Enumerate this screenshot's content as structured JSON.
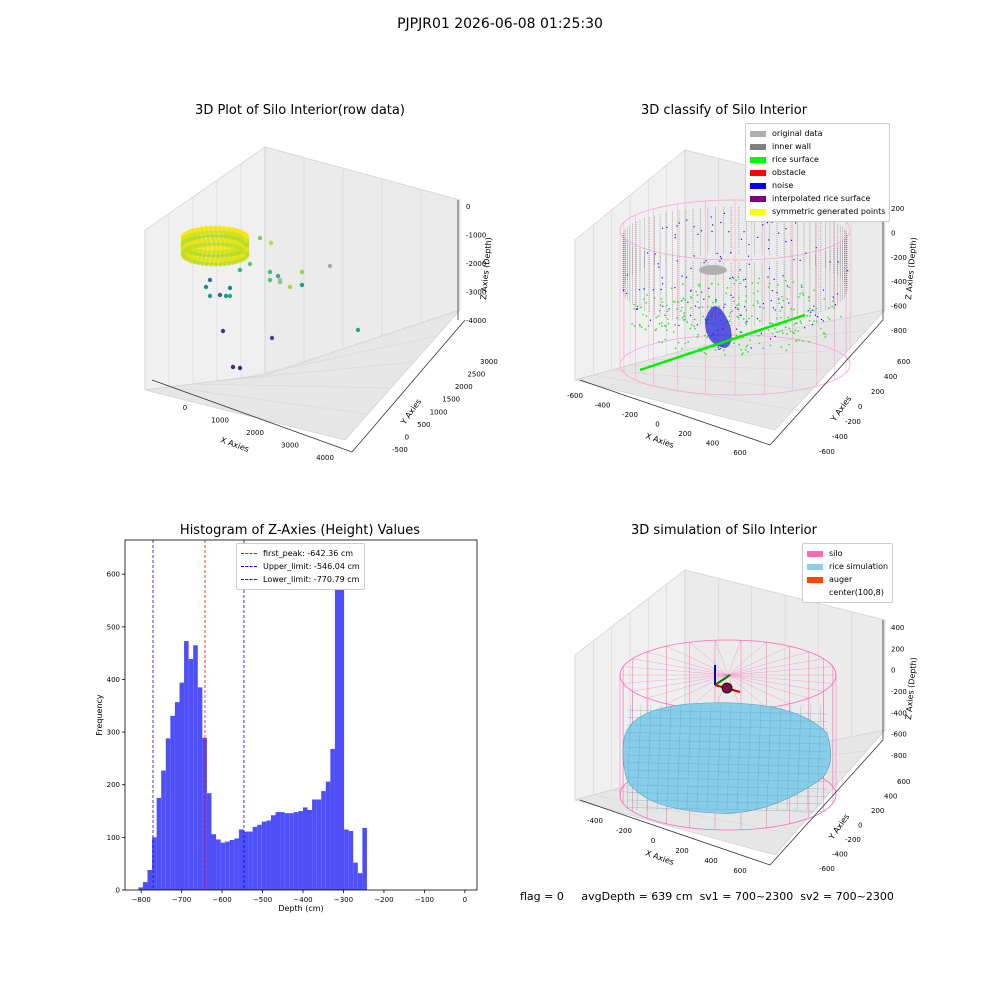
{
  "suptitle": "PJPJR01 2026-06-08 01:25:30",
  "footer": {
    "flag": "flag = 0",
    "avg": "avgDepth = 639 cm",
    "sv1": "sv1 = 700~2300",
    "sv2": "sv2 = 700~2300"
  },
  "chart_data": [
    {
      "type": "scatter",
      "title": "3D Plot of Silo Interior(row data)",
      "xlabel": "X Axies",
      "ylabel": "Y Axies",
      "zlabel": "Z Axies (Depth)",
      "x_ticks": [
        "0",
        "1000",
        "2000",
        "3000",
        "4000"
      ],
      "y_ticks": [
        "-500",
        "0",
        "500",
        "1000",
        "1500",
        "2000",
        "2500",
        "3000"
      ],
      "z_ticks": [
        "0",
        "-1000",
        "-2000",
        "-3000",
        "-4000"
      ]
    },
    {
      "type": "scatter",
      "title": "3D classify of Silo Interior",
      "xlabel": "X Axies",
      "ylabel": "Y Axies",
      "zlabel": "Z Axies (Depth)",
      "x_ticks": [
        "-600",
        "-400",
        "-200",
        "0",
        "200",
        "400",
        "600"
      ],
      "y_ticks": [
        "-600",
        "-400",
        "-200",
        "0",
        "200",
        "400",
        "600"
      ],
      "z_ticks": [
        "200",
        "0",
        "-200",
        "-400",
        "-600",
        "-800"
      ],
      "legend": [
        {
          "label": "original data",
          "color": "#b0b0b0"
        },
        {
          "label": "inner wall",
          "color": "#808080"
        },
        {
          "label": "rice surface",
          "color": "#00ff00"
        },
        {
          "label": "obstacle",
          "color": "#ff0000"
        },
        {
          "label": "noise",
          "color": "#0000ff"
        },
        {
          "label": "interpolated rice surface",
          "color": "#800080"
        },
        {
          "label": "symmetric generated points",
          "color": "#ffff00"
        }
      ]
    },
    {
      "type": "bar",
      "title": "Histogram of Z-Axies (Height) Values",
      "xlabel": "Depth (cm)",
      "ylabel": "Frequency",
      "xlim": [
        -840,
        30
      ],
      "ylim": [
        0,
        665
      ],
      "x_ticks": [
        -800,
        -700,
        -600,
        -500,
        -400,
        -300,
        -200,
        -100,
        0
      ],
      "y_ticks": [
        0,
        100,
        200,
        300,
        400,
        500,
        600
      ],
      "bin_start": -807,
      "bin_width": 11.3,
      "values": [
        5,
        15,
        38,
        100,
        175,
        227,
        288,
        331,
        357,
        394,
        473,
        439,
        465,
        385,
        289,
        184,
        106,
        96,
        90,
        92,
        95,
        98,
        115,
        111,
        111,
        120,
        124,
        130,
        132,
        142,
        148,
        148,
        146,
        146,
        148,
        150,
        157,
        152,
        172,
        172,
        188,
        206,
        268,
        633,
        617,
        115,
        112,
        52,
        32,
        118
      ],
      "vlines": [
        {
          "label": "first_peak: -642.36 cm",
          "x": -642.36,
          "color": "#ff0000"
        },
        {
          "label": "Upper_limit: -546.04 cm",
          "x": -546.04,
          "color": "#0000ff"
        },
        {
          "label": "Lower_limit: -770.79 cm",
          "x": -770.79,
          "color": "#0000ff"
        }
      ]
    },
    {
      "type": "scatter",
      "title": "3D simulation of Silo Interior",
      "xlabel": "X Axies",
      "ylabel": "Y Axies",
      "zlabel": "Z Axies (Depth)",
      "x_ticks": [
        "-400",
        "-200",
        "0",
        "200",
        "400",
        "600"
      ],
      "y_ticks": [
        "-600",
        "-400",
        "-200",
        "0",
        "200",
        "400",
        "600"
      ],
      "z_ticks": [
        "400",
        "200",
        "0",
        "-200",
        "-400",
        "-600",
        "-800"
      ],
      "legend": [
        {
          "label": "silo",
          "color": "#ff69b4"
        },
        {
          "label": "rice simulation",
          "color": "#87ceeb"
        },
        {
          "label": "auger",
          "color": "#ff4500"
        },
        {
          "label": "center(100,8)",
          "color": ""
        }
      ]
    }
  ]
}
